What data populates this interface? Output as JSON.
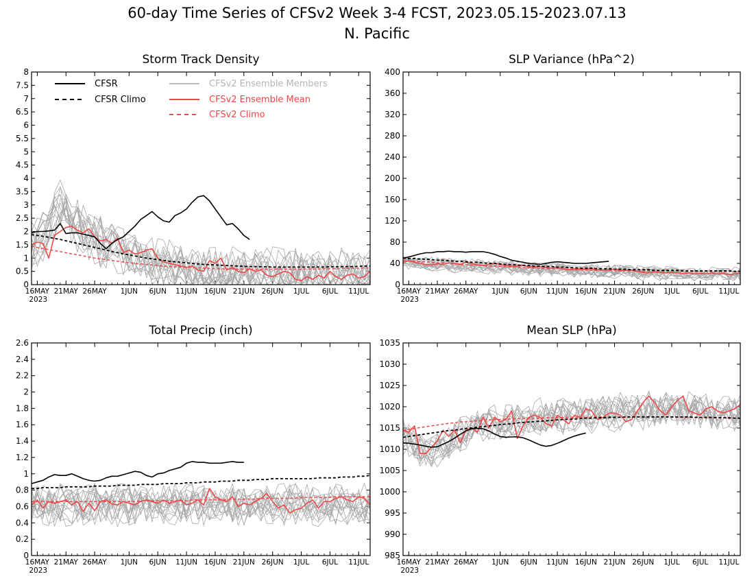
{
  "figure": {
    "title_line1": "60-day Time Series of CFSv2 Week 3-4 FCST, 2023.05.15-2023.07.13",
    "title_line2": "N. Pacific"
  },
  "legend": {
    "cfsr": "CFSR",
    "cfsr_climo": "CFSR Climo",
    "members": "CFSv2 Ensemble Members",
    "ens_mean": "CFSv2 Ensemble Mean",
    "cfsv2_climo": "CFSv2 Climo"
  },
  "colors": {
    "cfsr": "#000000",
    "members": "#a8a8a8",
    "ens_mean": "#f04848",
    "cfsv2_climo": "#f04848",
    "legend_members_text": "#b4b4b4"
  },
  "x_axis": {
    "ticks": [
      {
        "day": 1,
        "label": "16MAY"
      },
      {
        "day": 6,
        "label": "21MAY"
      },
      {
        "day": 11,
        "label": "26MAY"
      },
      {
        "day": 17,
        "label": "1JUN"
      },
      {
        "day": 22,
        "label": "6JUN"
      },
      {
        "day": 27,
        "label": "11JUN"
      },
      {
        "day": 32,
        "label": "16JUN"
      },
      {
        "day": 37,
        "label": "21JUN"
      },
      {
        "day": 42,
        "label": "26JUN"
      },
      {
        "day": 47,
        "label": "1JUL"
      },
      {
        "day": 52,
        "label": "6JUL"
      },
      {
        "day": 57,
        "label": "11JUL"
      }
    ],
    "year_label": "2023"
  },
  "chart_data": [
    {
      "type": "line",
      "title": "Storm Track Density",
      "ylim": [
        0,
        8
      ],
      "yticks": [
        "0",
        "0.5",
        "1",
        "1.5",
        "2",
        "2.5",
        "3",
        "3.5",
        "4",
        "4.5",
        "5",
        "5.5",
        "6",
        "6.5",
        "7",
        "7.5",
        "8"
      ],
      "x_start": "2023-05-15",
      "x_end": "2023-07-13",
      "cfsr": [
        1.95,
        2.0,
        2.0,
        2.02,
        2.05,
        2.3,
        1.92,
        1.95,
        1.95,
        1.9,
        1.85,
        1.8,
        1.55,
        1.35,
        1.55,
        1.7,
        1.8,
        2.0,
        2.2,
        2.45,
        2.6,
        2.75,
        2.55,
        2.4,
        2.35,
        2.6,
        2.7,
        2.85,
        3.1,
        3.3,
        3.35,
        3.15,
        2.85,
        2.55,
        2.25,
        2.3,
        2.1,
        1.85,
        1.7
      ],
      "cfsr_climo": [
        1.88,
        1.85,
        1.82,
        1.78,
        1.74,
        1.7,
        1.65,
        1.6,
        1.55,
        1.5,
        1.45,
        1.4,
        1.35,
        1.3,
        1.25,
        1.2,
        1.16,
        1.12,
        1.08,
        1.04,
        1.0,
        0.97,
        0.94,
        0.91,
        0.88,
        0.86,
        0.84,
        0.82,
        0.8,
        0.78,
        0.76,
        0.75,
        0.74,
        0.73,
        0.72,
        0.71,
        0.7,
        0.69,
        0.68,
        0.68,
        0.67,
        0.67,
        0.66,
        0.66,
        0.66,
        0.66,
        0.66,
        0.66,
        0.66,
        0.66,
        0.66,
        0.66,
        0.67,
        0.67,
        0.67,
        0.68,
        0.68,
        0.69,
        0.7,
        0.7
      ],
      "ens_mean": [
        1.5,
        1.6,
        1.55,
        1.0,
        1.85,
        2.0,
        2.15,
        2.2,
        2.05,
        1.95,
        2.1,
        1.8,
        1.65,
        1.7,
        1.55,
        1.75,
        1.2,
        1.3,
        1.15,
        1.2,
        1.3,
        1.35,
        1.0,
        0.85,
        0.8,
        0.75,
        0.7,
        0.65,
        0.7,
        0.55,
        0.5,
        0.9,
        0.8,
        1.0,
        0.55,
        0.65,
        0.5,
        0.45,
        0.6,
        0.5,
        0.55,
        0.35,
        0.3,
        0.4,
        0.5,
        0.45,
        0.2,
        0.15,
        0.3,
        0.2,
        0.35,
        0.25,
        0.5,
        0.3,
        0.2,
        0.35,
        0.4,
        0.25,
        0.3,
        0.5
      ],
      "cfsv2_climo": [
        1.45,
        1.4,
        1.36,
        1.32,
        1.28,
        1.24,
        1.2,
        1.16,
        1.12,
        1.08,
        1.04,
        1.0,
        0.97,
        0.94,
        0.91,
        0.88,
        0.85,
        0.82,
        0.8,
        0.78,
        0.76,
        0.74,
        0.72,
        0.7,
        0.68,
        0.67,
        0.66,
        0.65,
        0.64,
        0.63,
        0.62,
        0.61,
        0.6,
        0.6,
        0.59,
        0.59,
        0.58,
        0.58,
        0.58,
        0.58,
        0.58,
        0.58,
        0.58,
        0.58,
        0.58,
        0.58,
        0.58,
        0.58,
        0.59,
        0.59,
        0.59,
        0.6,
        0.6,
        0.6,
        0.61,
        0.61,
        0.62,
        0.62,
        0.63,
        0.63
      ],
      "members_range": {
        "center": [
          1.5,
          1.7,
          1.8,
          2.2,
          2.6,
          2.9,
          2.7,
          2.5,
          2.3,
          2.1,
          2.0,
          1.8,
          1.7,
          1.6,
          1.5,
          1.4,
          1.3,
          1.2,
          1.1,
          1.0,
          0.95,
          0.9,
          0.85,
          0.8,
          0.75,
          0.7,
          0.65,
          0.6,
          0.55,
          0.5,
          0.5,
          0.5,
          0.45,
          0.45,
          0.45,
          0.4,
          0.4,
          0.4,
          0.4,
          0.4,
          0.4,
          0.4,
          0.4,
          0.4,
          0.4,
          0.4,
          0.4,
          0.4,
          0.4,
          0.4,
          0.4,
          0.4,
          0.4,
          0.4,
          0.4,
          0.4,
          0.4,
          0.4,
          0.4,
          0.4
        ],
        "spread": 1.0
      }
    },
    {
      "type": "line",
      "title": "SLP Variance (hPa^2)",
      "ylim": [
        0,
        400
      ],
      "yticks": [
        "0",
        "40",
        "80",
        "120",
        "160",
        "200",
        "240",
        "280",
        "320",
        "360",
        "400"
      ],
      "x_start": "2023-05-15",
      "x_end": "2023-07-13",
      "cfsr": [
        50,
        52,
        55,
        58,
        60,
        60,
        62,
        62,
        63,
        62,
        62,
        61,
        62,
        62,
        62,
        60,
        57,
        53,
        50,
        46,
        44,
        42,
        40,
        39,
        38,
        40,
        42,
        43,
        42,
        41,
        40,
        40,
        40,
        41,
        42,
        43,
        44
      ],
      "cfsr_climo": [
        50,
        49,
        49,
        48,
        48,
        47,
        46,
        46,
        45,
        44,
        44,
        43,
        42,
        42,
        41,
        40,
        40,
        39,
        38,
        38,
        37,
        36,
        36,
        35,
        35,
        34,
        34,
        33,
        33,
        32,
        32,
        31,
        31,
        31,
        30,
        30,
        30,
        29,
        29,
        29,
        28,
        28,
        28,
        28,
        27,
        27,
        27,
        27,
        27,
        26,
        26,
        26,
        26,
        26,
        26,
        26,
        26,
        26,
        25,
        25
      ],
      "ens_mean": [
        42,
        45,
        42,
        40,
        38,
        37,
        39,
        38,
        41,
        40,
        38,
        42,
        40,
        37,
        36,
        38,
        40,
        38,
        36,
        35,
        35,
        36,
        34,
        33,
        34,
        32,
        31,
        32,
        30,
        28,
        30,
        29,
        29,
        30,
        28,
        27,
        28,
        29,
        27,
        27,
        27,
        25,
        23,
        22,
        24,
        23,
        22,
        23,
        22,
        21,
        22,
        20,
        21,
        20,
        22,
        20,
        21,
        19,
        20,
        21
      ],
      "cfsv2_climo": [
        46,
        45,
        44,
        43,
        43,
        42,
        41,
        41,
        40,
        39,
        38,
        38,
        37,
        37,
        36,
        35,
        35,
        34,
        34,
        33,
        33,
        32,
        32,
        31,
        31,
        30,
        30,
        30,
        29,
        29,
        28,
        28,
        28,
        27,
        27,
        27,
        27,
        26,
        26,
        26,
        26,
        25,
        25,
        25,
        25,
        25,
        25,
        25,
        25,
        25,
        25,
        25,
        25,
        25,
        25,
        25,
        25,
        25,
        25,
        25
      ],
      "members_range": {
        "center": [
          40,
          42,
          41,
          40,
          39,
          38,
          38,
          37,
          37,
          36,
          36,
          36,
          35,
          35,
          34,
          34,
          33,
          33,
          32,
          32,
          31,
          31,
          30,
          30,
          29,
          29,
          28,
          28,
          27,
          27,
          26,
          26,
          26,
          25,
          25,
          25,
          24,
          24,
          24,
          23,
          23,
          23,
          22,
          22,
          22,
          22,
          21,
          21,
          21,
          21,
          21,
          20,
          20,
          20,
          20,
          20,
          20,
          20,
          20,
          20
        ],
        "spread": 14
      }
    },
    {
      "type": "line",
      "title": "Total Precip (inch)",
      "ylim": [
        0,
        2.6
      ],
      "yticks": [
        "0",
        "0.2",
        "0.4",
        "0.6",
        "0.8",
        "1",
        "1.2",
        "1.4",
        "1.6",
        "1.8",
        "2",
        "2.2",
        "2.4",
        "2.6"
      ],
      "x_start": "2023-05-15",
      "x_end": "2023-07-13",
      "cfsr": [
        0.88,
        0.9,
        0.92,
        0.96,
        0.99,
        0.98,
        0.98,
        1.0,
        0.97,
        0.94,
        0.92,
        0.91,
        0.92,
        0.95,
        0.97,
        0.97,
        0.99,
        1.01,
        1.03,
        1.02,
        0.98,
        0.96,
        1.0,
        1.01,
        1.04,
        1.06,
        1.08,
        1.13,
        1.15,
        1.14,
        1.14,
        1.13,
        1.13,
        1.13,
        1.14,
        1.15,
        1.14,
        1.14
      ],
      "cfsr_climo": [
        0.82,
        0.82,
        0.83,
        0.83,
        0.83,
        0.83,
        0.84,
        0.84,
        0.84,
        0.84,
        0.84,
        0.85,
        0.85,
        0.85,
        0.85,
        0.86,
        0.86,
        0.86,
        0.86,
        0.87,
        0.87,
        0.87,
        0.87,
        0.88,
        0.88,
        0.88,
        0.88,
        0.89,
        0.89,
        0.89,
        0.9,
        0.9,
        0.9,
        0.91,
        0.91,
        0.91,
        0.92,
        0.92,
        0.92,
        0.93,
        0.93,
        0.93,
        0.94,
        0.94,
        0.94,
        0.94,
        0.94,
        0.94,
        0.94,
        0.94,
        0.95,
        0.95,
        0.95,
        0.95,
        0.96,
        0.96,
        0.96,
        0.97,
        0.97,
        0.98
      ],
      "ens_mean": [
        0.62,
        0.68,
        0.58,
        0.66,
        0.64,
        0.66,
        0.68,
        0.62,
        0.66,
        0.54,
        0.64,
        0.55,
        0.66,
        0.68,
        0.63,
        0.62,
        0.66,
        0.64,
        0.62,
        0.66,
        0.68,
        0.66,
        0.64,
        0.68,
        0.64,
        0.66,
        0.68,
        0.62,
        0.64,
        0.68,
        0.62,
        0.82,
        0.72,
        0.68,
        0.66,
        0.72,
        0.6,
        0.64,
        0.62,
        0.66,
        0.7,
        0.76,
        0.66,
        0.58,
        0.62,
        0.52,
        0.56,
        0.58,
        0.64,
        0.68,
        0.58,
        0.66,
        0.66,
        0.7,
        0.72,
        0.68,
        0.66,
        0.72,
        0.7,
        0.62
      ],
      "cfsv2_climo": [
        0.66,
        0.66,
        0.66,
        0.66,
        0.66,
        0.66,
        0.66,
        0.66,
        0.66,
        0.66,
        0.66,
        0.66,
        0.66,
        0.66,
        0.66,
        0.66,
        0.66,
        0.66,
        0.66,
        0.67,
        0.67,
        0.67,
        0.67,
        0.67,
        0.67,
        0.67,
        0.67,
        0.67,
        0.68,
        0.68,
        0.68,
        0.68,
        0.68,
        0.68,
        0.68,
        0.69,
        0.69,
        0.69,
        0.69,
        0.69,
        0.7,
        0.7,
        0.7,
        0.7,
        0.7,
        0.7,
        0.7,
        0.71,
        0.71,
        0.71,
        0.71,
        0.71,
        0.71,
        0.72,
        0.72,
        0.72,
        0.72,
        0.72,
        0.72,
        0.72
      ],
      "members_range": {
        "center": [
          0.62,
          0.62,
          0.62,
          0.62,
          0.62,
          0.62,
          0.62,
          0.62,
          0.62,
          0.62,
          0.62,
          0.62,
          0.62,
          0.62,
          0.62,
          0.62,
          0.62,
          0.62,
          0.62,
          0.62,
          0.62,
          0.62,
          0.62,
          0.62,
          0.62,
          0.62,
          0.62,
          0.62,
          0.62,
          0.62,
          0.62,
          0.62,
          0.62,
          0.62,
          0.62,
          0.62,
          0.62,
          0.62,
          0.62,
          0.62,
          0.62,
          0.62,
          0.62,
          0.62,
          0.62,
          0.62,
          0.62,
          0.62,
          0.62,
          0.62,
          0.62,
          0.62,
          0.62,
          0.62,
          0.62,
          0.62,
          0.62,
          0.62,
          0.62,
          0.62
        ],
        "spread": 0.25
      }
    },
    {
      "type": "line",
      "title": "Mean SLP (hPa)",
      "ylim": [
        985,
        1035
      ],
      "yticks": [
        "985",
        "990",
        "995",
        "1000",
        "1005",
        "1010",
        "1015",
        "1020",
        "1025",
        "1030",
        "1035"
      ],
      "x_start": "2023-05-15",
      "x_end": "2023-07-13",
      "cfsr": [
        1011.5,
        1011.4,
        1011.2,
        1011.0,
        1010.7,
        1010.5,
        1010.6,
        1011.2,
        1011.8,
        1012.6,
        1013.5,
        1014.3,
        1014.8,
        1014.9,
        1014.8,
        1014.3,
        1013.6,
        1013.0,
        1012.8,
        1012.9,
        1012.9,
        1012.7,
        1012.2,
        1011.6,
        1011.0,
        1010.7,
        1010.9,
        1011.4,
        1012.0,
        1012.6,
        1013.1,
        1013.5,
        1013.8
      ],
      "cfsr_climo": [
        1012.8,
        1013.0,
        1013.2,
        1013.4,
        1013.6,
        1013.8,
        1014.0,
        1014.2,
        1014.4,
        1014.5,
        1014.7,
        1014.9,
        1015.0,
        1015.2,
        1015.3,
        1015.5,
        1015.6,
        1015.8,
        1015.9,
        1016.0,
        1016.2,
        1016.3,
        1016.4,
        1016.5,
        1016.6,
        1016.7,
        1016.8,
        1016.9,
        1017.0,
        1017.1,
        1017.1,
        1017.2,
        1017.3,
        1017.3,
        1017.4,
        1017.4,
        1017.5,
        1017.5,
        1017.5,
        1017.6,
        1017.6,
        1017.6,
        1017.6,
        1017.6,
        1017.6,
        1017.6,
        1017.6,
        1017.6,
        1017.6,
        1017.6,
        1017.6,
        1017.5,
        1017.5,
        1017.5,
        1017.5,
        1017.4,
        1017.4,
        1017.4,
        1017.3,
        1017.3
      ],
      "ens_mean": [
        1014.5,
        1014.0,
        1015.5,
        1009.0,
        1009.0,
        1010.5,
        1012.0,
        1014.5,
        1013.0,
        1014.5,
        1011.5,
        1014.5,
        1015.0,
        1014.0,
        1017.5,
        1015.0,
        1017.5,
        1016.5,
        1017.0,
        1019.0,
        1012.5,
        1015.5,
        1017.5,
        1018.0,
        1017.5,
        1016.0,
        1015.5,
        1018.0,
        1017.0,
        1016.0,
        1018.0,
        1017.5,
        1019.5,
        1019.0,
        1017.0,
        1017.5,
        1018.5,
        1018.5,
        1018.0,
        1016.5,
        1017.0,
        1019.0,
        1021.0,
        1022.5,
        1021.0,
        1019.0,
        1018.0,
        1020.0,
        1021.5,
        1022.5,
        1019.0,
        1018.5,
        1018.0,
        1019.5,
        1020.0,
        1019.0,
        1018.5,
        1019.0,
        1019.5,
        1020.5
      ],
      "cfsv2_climo": [
        1014.5,
        1014.7,
        1014.9,
        1015.1,
        1015.3,
        1015.5,
        1015.7,
        1015.9,
        1016.1,
        1016.2,
        1016.4,
        1016.5,
        1016.6,
        1016.7,
        1016.8,
        1016.9,
        1017.0,
        1017.0,
        1017.1,
        1017.1,
        1017.2,
        1017.2,
        1017.3,
        1017.3,
        1017.3,
        1017.4,
        1017.4,
        1017.4,
        1017.5,
        1017.5,
        1017.5,
        1017.5,
        1017.5,
        1017.6,
        1017.6,
        1017.6,
        1017.6,
        1017.6,
        1017.6,
        1017.6,
        1017.6,
        1017.6,
        1017.6,
        1017.6,
        1017.6,
        1017.6,
        1017.6,
        1017.6,
        1017.5,
        1017.5,
        1017.5,
        1017.5,
        1017.5,
        1017.4,
        1017.4,
        1017.4,
        1017.4,
        1017.3,
        1017.3,
        1017.3
      ],
      "members_range": {
        "center": [
          1013,
          1012,
          1011,
          1010,
          1009,
          1009,
          1010,
          1011,
          1012,
          1013,
          1013.5,
          1014,
          1014.5,
          1015,
          1015.5,
          1015.8,
          1016,
          1016.2,
          1016.5,
          1016.7,
          1016.9,
          1017,
          1017.2,
          1017.3,
          1017.5,
          1017.6,
          1017.7,
          1017.8,
          1017.9,
          1018,
          1018,
          1018.1,
          1018.2,
          1018.3,
          1018.4,
          1018.5,
          1018.6,
          1018.7,
          1018.8,
          1018.9,
          1019,
          1019,
          1019.1,
          1019.2,
          1019.3,
          1019.3,
          1019.4,
          1019.4,
          1019.4,
          1019.3,
          1019.2,
          1019.1,
          1019,
          1018.9,
          1018.8,
          1018.7,
          1018.6,
          1018.5,
          1018.4,
          1018.3
        ],
        "spread": 4.5
      }
    }
  ]
}
